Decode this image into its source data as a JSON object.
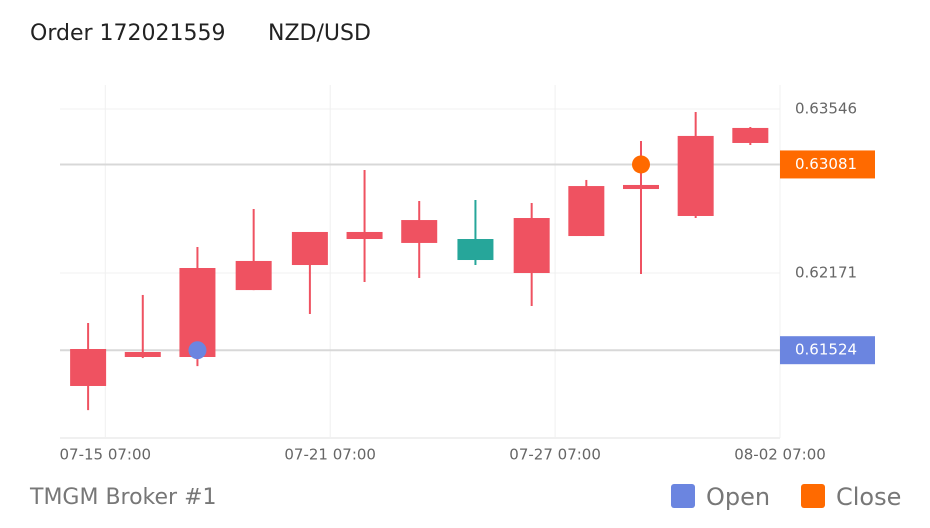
{
  "chart_data": {
    "type": "candlestick",
    "title": "Order 172021559",
    "subtitle": "NZD/USD",
    "footer": "TMGM Broker #1",
    "x": [
      "07-14 20:00",
      "07-16 07:00",
      "07-17 18:00",
      "07-19 06:00",
      "07-20 18:00",
      "07-22 05:00",
      "07-23 16:00",
      "07-25 04:00",
      "07-26 16:00",
      "07-28 03:00",
      "07-29 14:00",
      "07-31 01:00",
      "08-01 12:00"
    ],
    "open": [
      0.61224,
      0.61467,
      0.61467,
      0.62028,
      0.62238,
      0.62456,
      0.62423,
      0.62456,
      0.62171,
      0.62481,
      0.62875,
      0.62649,
      0.63261
    ],
    "high": [
      0.61752,
      0.61987,
      0.62389,
      0.62708,
      0.62515,
      0.63035,
      0.62775,
      0.62783,
      0.62758,
      0.62951,
      0.63278,
      0.63521,
      0.63395
    ],
    "low": [
      0.61022,
      0.61458,
      0.61391,
      0.62028,
      0.61827,
      0.62096,
      0.62129,
      0.62238,
      0.61894,
      0.62481,
      0.62163,
      0.62632,
      0.63244
    ],
    "close": [
      0.61534,
      0.61509,
      0.62213,
      0.62272,
      0.62515,
      0.62515,
      0.62615,
      0.6228,
      0.62632,
      0.629,
      0.62909,
      0.6332,
      0.63387
    ],
    "up_color": "#ef5261",
    "down_color": "#26a69a",
    "xlim": [
      "07-14 02:00",
      "08-02 07:00"
    ],
    "xticks": [
      "07-15 07:00",
      "07-21 07:00",
      "07-27 07:00",
      "08-02 07:00"
    ],
    "ylim": [
      0.60788,
      0.63747
    ],
    "yticks": [
      0.63546,
      0.62171
    ],
    "grid": true,
    "markers": [
      {
        "name": "Open",
        "color": "#6b85e0",
        "x": "07-17 18:00",
        "value": 0.61524
      },
      {
        "name": "Close",
        "color": "#ff6a00",
        "x": "07-29 14:00",
        "value": 0.63081
      }
    ]
  }
}
